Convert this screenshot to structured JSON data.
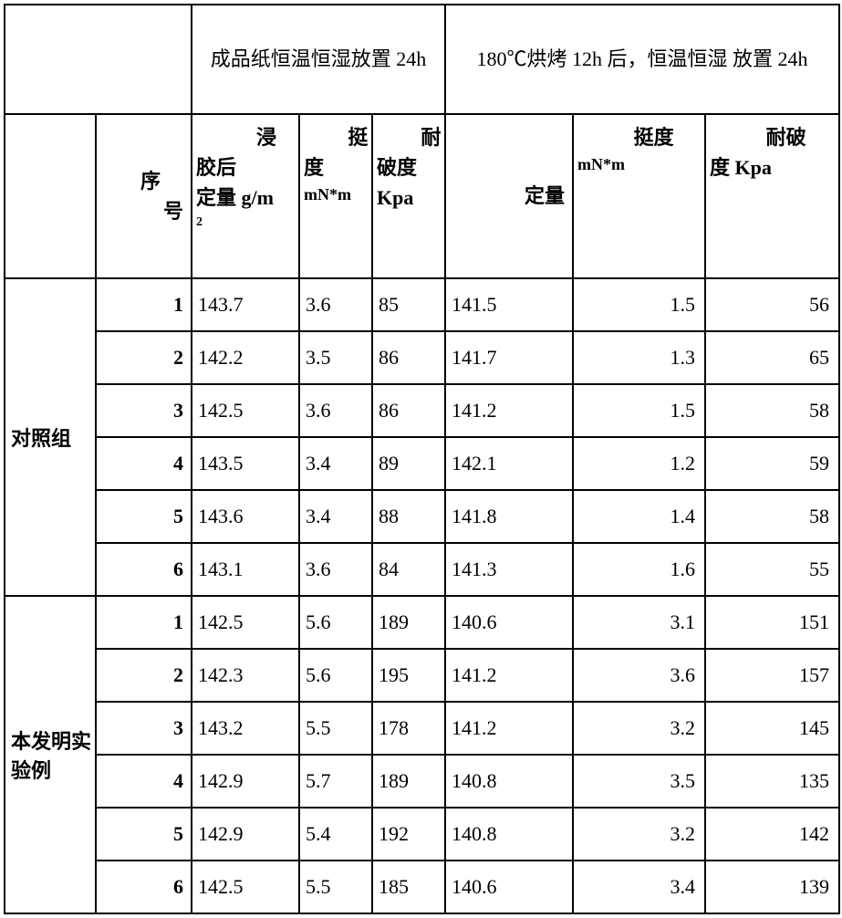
{
  "headers": {
    "group1_title": "成品纸恒温恒湿放置 24h",
    "group2_title": "180℃烘烤 12h 后，恒温恒湿 放置 24h",
    "seq": "序号",
    "col1": "浸胶后定量 g/m²",
    "col2": "挺度 mN*m",
    "col3": "耐破度 Kpa",
    "col4": "定量",
    "col5": "挺度 mN*m",
    "col6": "耐破度 Kpa"
  },
  "groups": [
    {
      "label": "对照组",
      "rows": [
        {
          "seq": "1",
          "c1": "143.7",
          "c2": "3.6",
          "c3": "85",
          "c4": "141.5",
          "c5": "1.5",
          "c6": "56"
        },
        {
          "seq": "2",
          "c1": "142.2",
          "c2": "3.5",
          "c3": "86",
          "c4": "141.7",
          "c5": "1.3",
          "c6": "65"
        },
        {
          "seq": "3",
          "c1": "142.5",
          "c2": "3.6",
          "c3": "86",
          "c4": "141.2",
          "c5": "1.5",
          "c6": "58"
        },
        {
          "seq": "4",
          "c1": "143.5",
          "c2": "3.4",
          "c3": "89",
          "c4": "142.1",
          "c5": "1.2",
          "c6": "59"
        },
        {
          "seq": "5",
          "c1": "143.6",
          "c2": "3.4",
          "c3": "88",
          "c4": "141.8",
          "c5": "1.4",
          "c6": "58"
        },
        {
          "seq": "6",
          "c1": "143.1",
          "c2": "3.6",
          "c3": "84",
          "c4": "141.3",
          "c5": "1.6",
          "c6": "55"
        }
      ]
    },
    {
      "label": "本发明实验例",
      "rows": [
        {
          "seq": "1",
          "c1": "142.5",
          "c2": "5.6",
          "c3": "189",
          "c4": "140.6",
          "c5": "3.1",
          "c6": "151"
        },
        {
          "seq": "2",
          "c1": "142.3",
          "c2": "5.6",
          "c3": "195",
          "c4": "141.2",
          "c5": "3.6",
          "c6": "157"
        },
        {
          "seq": "3",
          "c1": "143.2",
          "c2": "5.5",
          "c3": "178",
          "c4": "141.2",
          "c5": "3.2",
          "c6": "145"
        },
        {
          "seq": "4",
          "c1": "142.9",
          "c2": "5.7",
          "c3": "189",
          "c4": "140.8",
          "c5": "3.5",
          "c6": "135"
        },
        {
          "seq": "5",
          "c1": "142.9",
          "c2": "5.4",
          "c3": "192",
          "c4": "140.8",
          "c5": "3.2",
          "c6": "142"
        },
        {
          "seq": "6",
          "c1": "142.5",
          "c2": "5.5",
          "c3": "185",
          "c4": "140.6",
          "c5": "3.4",
          "c6": "139"
        }
      ]
    }
  ],
  "style": {
    "border_color": "#000000",
    "background": "#ffffff",
    "font_family": "SimSun",
    "header_fontsize": 22,
    "cell_fontsize": 22
  }
}
